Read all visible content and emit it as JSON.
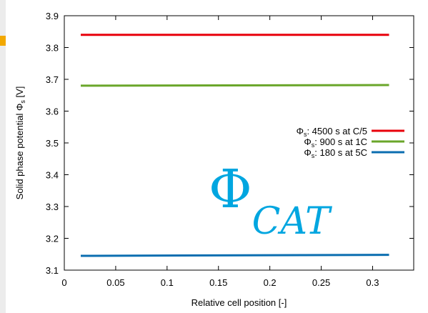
{
  "chart_data": {
    "type": "line",
    "xlabel": "Relative cell position [-]",
    "ylabel": "Solid phase potential Φ_s [V]",
    "ylabel_main": "Solid phase potential Φ",
    "ylabel_sub": "s",
    "ylabel_unit": " [V]",
    "xlim": [
      0,
      0.34
    ],
    "ylim": [
      3.1,
      3.9
    ],
    "xticks": [
      0,
      0.05,
      0.1,
      0.15,
      0.2,
      0.25,
      0.3
    ],
    "xtick_labels": [
      "0",
      "0.05",
      "0.1",
      "0.15",
      "0.2",
      "0.25",
      "0.3"
    ],
    "yticks": [
      3.1,
      3.2,
      3.3,
      3.4,
      3.5,
      3.6,
      3.7,
      3.8,
      3.9
    ],
    "ytick_labels": [
      "3.1",
      "3.2",
      "3.3",
      "3.4",
      "3.5",
      "3.6",
      "3.7",
      "3.8",
      "3.9"
    ],
    "grid": false,
    "legend_position": "right",
    "series": [
      {
        "name": "Φs: 4500 s at C/5",
        "name_main": "Φ",
        "name_sub": "s",
        "name_rest": ": 4500 s at C/5",
        "color": "#e8000b",
        "x": [
          0.016,
          0.316
        ],
        "y": [
          3.84,
          3.84
        ]
      },
      {
        "name": "Φs: 900 s at 1C",
        "name_main": "Φ",
        "name_sub": "s",
        "name_rest": ": 900 s at 1C",
        "color": "#6aa62a",
        "x": [
          0.016,
          0.316
        ],
        "y": [
          3.68,
          3.682
        ]
      },
      {
        "name": "Φs: 180 s at 5C",
        "name_main": "Φ",
        "name_sub": "s",
        "name_rest": ": 180 s at 5C",
        "color": "#0b6eb0",
        "x": [
          0.016,
          0.316
        ],
        "y": [
          3.145,
          3.148
        ]
      }
    ],
    "annotation": {
      "symbol": "Φ",
      "subscript": "CAT",
      "color": "#00a6e0"
    }
  },
  "colors": {
    "accent": "#f2a800",
    "background": "#ececec",
    "panel": "#ffffff"
  }
}
